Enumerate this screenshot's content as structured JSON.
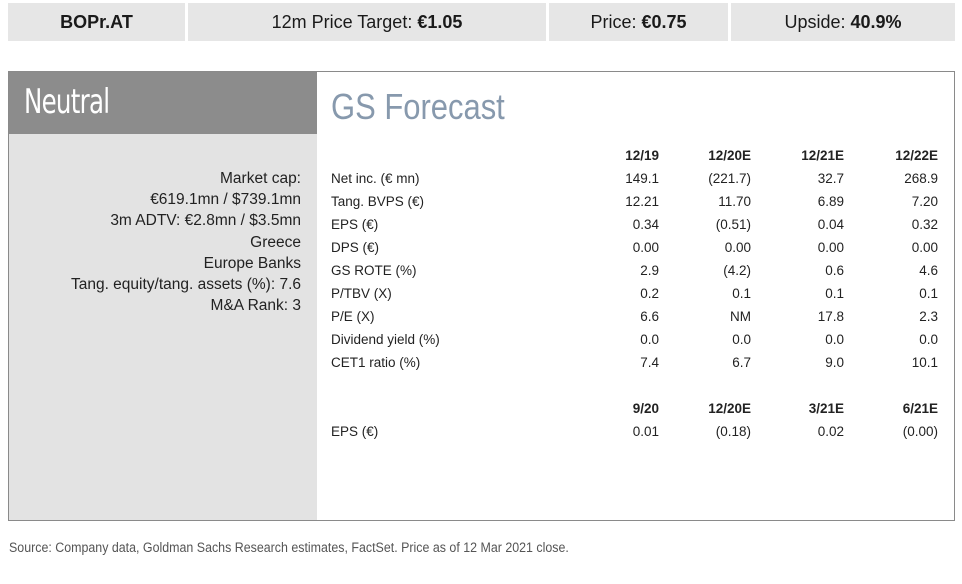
{
  "header": {
    "ticker": "BOPr.AT",
    "target_label": "12m Price Target: ",
    "target_value": "€1.05",
    "price_label": "Price: ",
    "price_value": "€0.75",
    "upside_label": "Upside: ",
    "upside_value": "40.9%"
  },
  "rating": "Neutral",
  "info": [
    "Market cap:",
    "€619.1mn / $739.1mn",
    "3m ADTV: €2.8mn / $3.5mn",
    "Greece",
    "Europe Banks",
    "Tang. equity/tang. assets (%): 7.6",
    "M&A Rank: 3"
  ],
  "forecast": {
    "title": "GS Forecast",
    "annual": {
      "columns": [
        "12/19",
        "12/20E",
        "12/21E",
        "12/22E"
      ],
      "rows": [
        {
          "label": "Net inc. (€ mn)",
          "values": [
            "149.1",
            "(221.7)",
            "32.7",
            "268.9"
          ]
        },
        {
          "label": "Tang. BVPS (€)",
          "values": [
            "12.21",
            "11.70",
            "6.89",
            "7.20"
          ]
        },
        {
          "label": "EPS (€)",
          "values": [
            "0.34",
            "(0.51)",
            "0.04",
            "0.32"
          ]
        },
        {
          "label": "DPS (€)",
          "values": [
            "0.00",
            "0.00",
            "0.00",
            "0.00"
          ]
        },
        {
          "label": "GS ROTE (%)",
          "values": [
            "2.9",
            "(4.2)",
            "0.6",
            "4.6"
          ]
        },
        {
          "label": "P/TBV (X)",
          "values": [
            "0.2",
            "0.1",
            "0.1",
            "0.1"
          ]
        },
        {
          "label": "P/E (X)",
          "values": [
            "6.6",
            "NM",
            "17.8",
            "2.3"
          ]
        },
        {
          "label": "Dividend yield (%)",
          "values": [
            "0.0",
            "0.0",
            "0.0",
            "0.0"
          ]
        },
        {
          "label": "CET1 ratio (%)",
          "values": [
            "7.4",
            "6.7",
            "9.0",
            "10.1"
          ]
        }
      ]
    },
    "quarterly": {
      "columns": [
        "9/20",
        "12/20E",
        "3/21E",
        "6/21E"
      ],
      "rows": [
        {
          "label": "EPS (€)",
          "values": [
            "0.01",
            "(0.18)",
            "0.02",
            "(0.00)"
          ]
        }
      ]
    }
  },
  "source": "Source: Company data, Goldman Sachs Research estimates, FactSet. Price as of 12 Mar 2021 close."
}
